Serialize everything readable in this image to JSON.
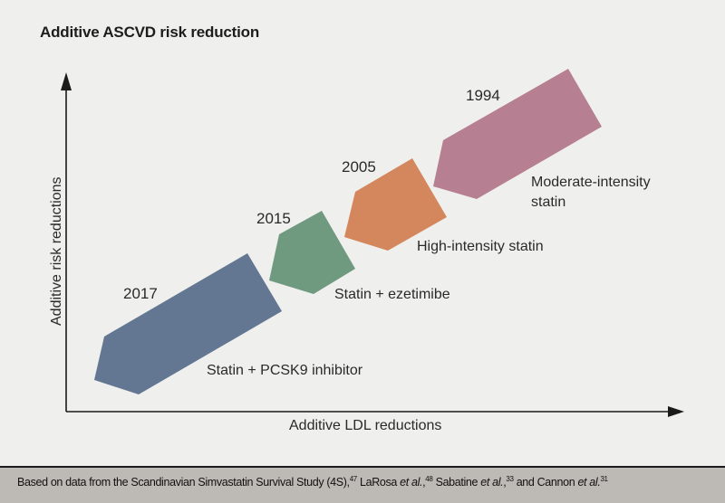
{
  "title": "Additive ASCVD risk reduction",
  "axes": {
    "y_label": "Additive risk reductions",
    "x_label": "Additive LDL reductions"
  },
  "therapies": [
    {
      "id": "pcsk9",
      "year": "2017",
      "label_lines": [
        "Statin + PCSK9 inhibitor"
      ],
      "color": "#637793"
    },
    {
      "id": "ezetimibe",
      "year": "2015",
      "label_lines": [
        "Statin + ezetimibe"
      ],
      "color": "#6f9a7f"
    },
    {
      "id": "high-statin",
      "year": "2005",
      "label_lines": [
        "High-intensity statin"
      ],
      "color": "#d4865c"
    },
    {
      "id": "moderate-statin",
      "year": "1994",
      "label_lines": [
        "Moderate-intensity",
        "statin"
      ],
      "color": "#b77f92"
    }
  ],
  "footer": {
    "segments": [
      {
        "text": "Based on data from the Scandinavian Simvastatin Survival Study (4S),",
        "style": "normal"
      },
      {
        "text": "47",
        "style": "sup"
      },
      {
        "text": " LaRosa ",
        "style": "normal"
      },
      {
        "text": "et al.",
        "style": "italic"
      },
      {
        "text": ",",
        "style": "normal"
      },
      {
        "text": "48",
        "style": "sup"
      },
      {
        "text": " Sabatine ",
        "style": "normal"
      },
      {
        "text": "et al.",
        "style": "italic"
      },
      {
        "text": ",",
        "style": "normal"
      },
      {
        "text": "33",
        "style": "sup"
      },
      {
        "text": " and Cannon ",
        "style": "normal"
      },
      {
        "text": "et al.",
        "style": "italic"
      },
      {
        "text": "31",
        "style": "sup"
      }
    ]
  },
  "colors": {
    "background": "#efefed",
    "footer_background": "#bdbab5",
    "axis": "#1a1a1a"
  }
}
